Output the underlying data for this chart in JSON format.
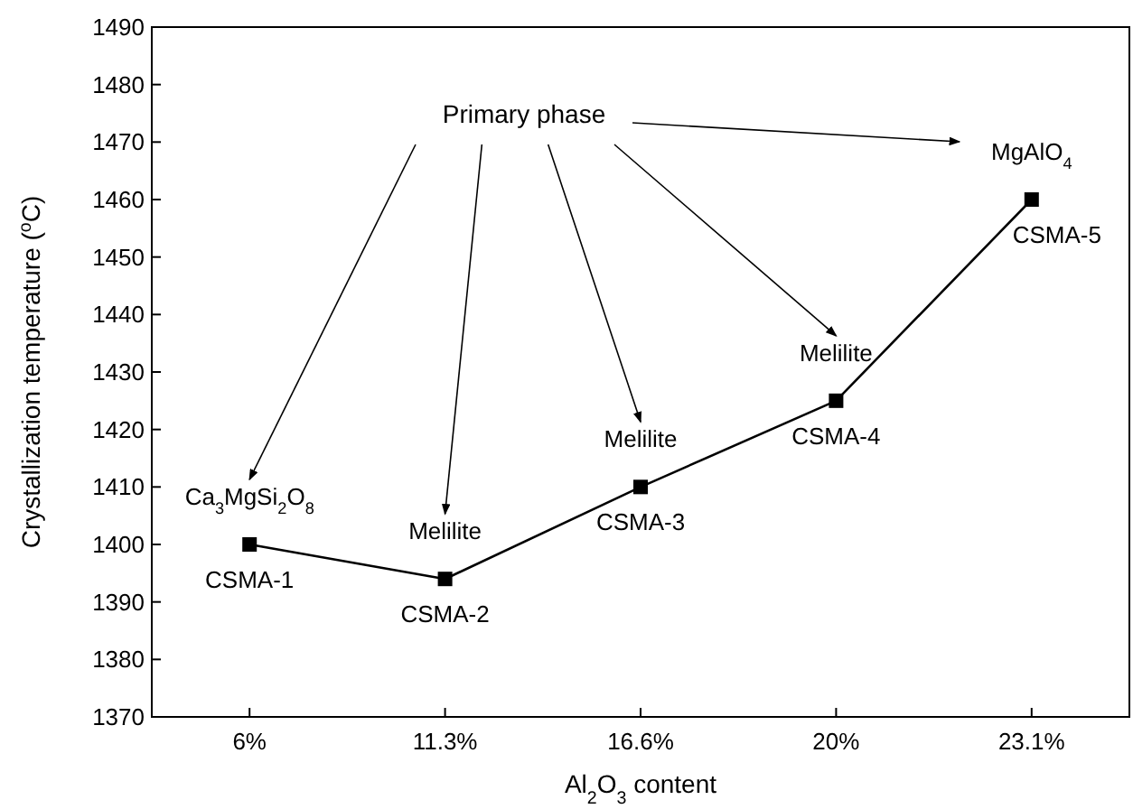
{
  "chart_data": {
    "type": "line",
    "xlabel": "Al$_{2}$O$_{3}$ content",
    "ylabel": "Crystallization temperature ($^{o}$C)",
    "categories": [
      "6%",
      "11.3%",
      "16.6%",
      "20%",
      "23.1%"
    ],
    "series": [
      {
        "color": "#000000",
        "values": [
          1400,
          1394,
          1410,
          1425,
          1460
        ]
      }
    ],
    "ylim": [
      1370,
      1490
    ],
    "yticks": [
      1370,
      1380,
      1390,
      1400,
      1410,
      1420,
      1430,
      1440,
      1450,
      1460,
      1470,
      1480,
      1490
    ],
    "marker": "square",
    "line_style": "solid",
    "annotations": [
      "Primary phase",
      {
        "text": "Ca$_{3}$MgSi$_{2}$O$_{8}$",
        "x": "6%",
        "y": 1400
      },
      {
        "text": "Melilite",
        "x": "11.3%",
        "y": 1394
      },
      {
        "text": "Melilite",
        "x": "16.6%",
        "y": 1410
      },
      {
        "text": "Melilite",
        "x": "20%",
        "y": 1425
      },
      {
        "text": "MgAlO$_{4}$",
        "x": "23.1%",
        "y": 1460
      },
      {
        "text": "CSMA-1",
        "x": "6%",
        "y": 1400
      },
      {
        "text": "CSMA-2",
        "x": "11.3%",
        "y": 1394
      },
      {
        "text": "CSMA-3",
        "x": "16.6%",
        "y": 1410
      },
      {
        "text": "CSMA-4",
        "x": "20%",
        "y": 1425
      },
      {
        "text": "CSMA-5",
        "x": "23.1%",
        "y": 1460
      }
    ]
  }
}
